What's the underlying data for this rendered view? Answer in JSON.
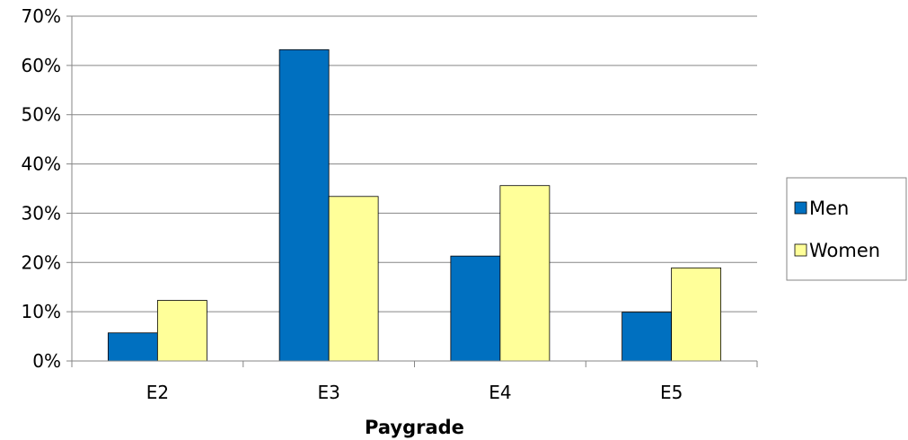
{
  "chart_data": {
    "type": "bar",
    "categories": [
      "E2",
      "E3",
      "E4",
      "E5"
    ],
    "series": [
      {
        "name": "Men",
        "values": [
          5.7,
          63.2,
          21.3,
          9.9
        ],
        "color": "#0070C0"
      },
      {
        "name": "Women",
        "values": [
          12.3,
          33.4,
          35.6,
          18.9
        ],
        "color": "#FFFF99"
      }
    ],
    "xlabel": "Paygrade",
    "ylabel": "",
    "ylim": [
      0,
      70
    ],
    "yticks": [
      0,
      10,
      20,
      30,
      40,
      50,
      60,
      70
    ],
    "ytick_format": "%",
    "grid": true,
    "legend_position": "right"
  }
}
